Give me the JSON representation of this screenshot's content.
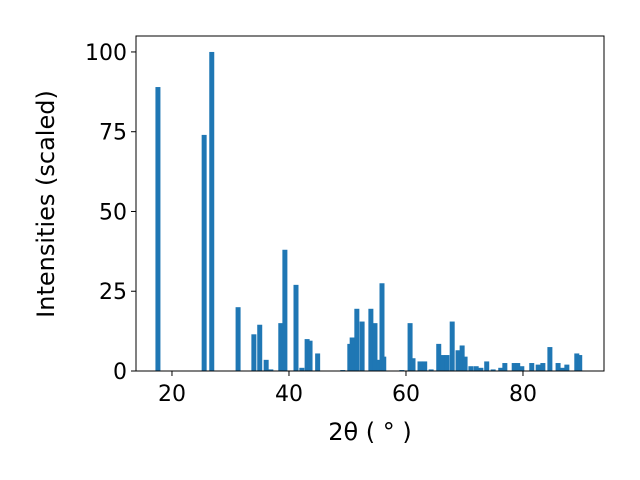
{
  "chart_data": {
    "type": "bar",
    "xlabel": "2θ ( ° )",
    "ylabel": "Intensities (scaled)",
    "color": "#1f77b4",
    "grid": false,
    "x": [
      17.6,
      25.5,
      26.8,
      31.3,
      34.0,
      35.0,
      36.1,
      36.9,
      38.6,
      39.3,
      41.2,
      42.2,
      43.1,
      43.6,
      44.9,
      49.2,
      50.4,
      50.8,
      51.6,
      52.5,
      54.0,
      54.7,
      55.4,
      55.9,
      56.2,
      59.3,
      60.7,
      61.2,
      62.4,
      63.2,
      64.3,
      65.6,
      66.3,
      67.0,
      67.9,
      68.9,
      69.6,
      70.1,
      71.1,
      72.0,
      72.8,
      73.8,
      74.9,
      76.2,
      76.9,
      78.5,
      79.1,
      79.8,
      81.5,
      82.6,
      83.4,
      84.6,
      86.0,
      86.7,
      87.5,
      89.2,
      89.7
    ],
    "values": [
      89,
      74,
      100,
      20,
      11.5,
      14.5,
      3.5,
      0.5,
      15,
      38,
      27,
      1,
      10,
      9.5,
      5.5,
      0.3,
      8.5,
      10.5,
      19.5,
      15.5,
      19.5,
      15,
      3.5,
      27.5,
      4.5,
      0.3,
      15,
      4,
      3,
      3,
      0.5,
      8.5,
      5,
      5,
      15.5,
      6.5,
      8,
      4.5,
      1.5,
      1.5,
      1,
      3,
      0.5,
      1,
      2.5,
      2.5,
      2.5,
      1.5,
      2.5,
      2,
      2.5,
      7.5,
      2.5,
      1,
      2,
      5.5,
      5
    ],
    "xlim": [
      13.85,
      93.85
    ],
    "ylim": [
      0,
      105
    ],
    "xticks": [
      20,
      40,
      60,
      80
    ],
    "yticks": [
      0,
      25,
      50,
      75,
      100
    ]
  }
}
